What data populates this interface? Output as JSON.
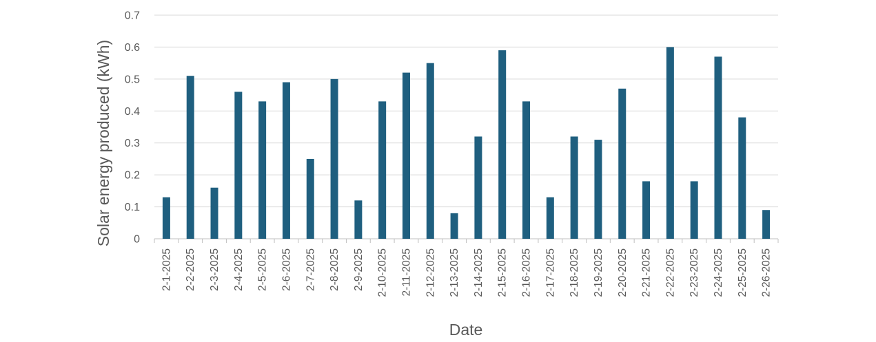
{
  "chart_data": {
    "type": "bar",
    "title": "",
    "xlabel": "Date",
    "ylabel": "Solar energy produced (kWh)",
    "ylim": [
      0,
      0.7
    ],
    "yticks": [
      "0",
      "0.1",
      "0.2",
      "0.3",
      "0.4",
      "0.5",
      "0.6",
      "0.7"
    ],
    "grid": true,
    "legend": "none",
    "bar_color": "#1f5f7f",
    "categories": [
      "2-1-2025",
      "2-2-2025",
      "2-3-2025",
      "2-4-2025",
      "2-5-2025",
      "2-6-2025",
      "2-7-2025",
      "2-8-2025",
      "2-9-2025",
      "2-10-2025",
      "2-11-2025",
      "2-12-2025",
      "2-13-2025",
      "2-14-2025",
      "2-15-2025",
      "2-16-2025",
      "2-17-2025",
      "2-18-2025",
      "2-19-2025",
      "2-20-2025",
      "2-21-2025",
      "2-22-2025",
      "2-23-2025",
      "2-24-2025",
      "2-25-2025",
      "2-26-2025"
    ],
    "values": [
      0.13,
      0.51,
      0.16,
      0.46,
      0.43,
      0.49,
      0.25,
      0.5,
      0.12,
      0.43,
      0.52,
      0.55,
      0.08,
      0.32,
      0.59,
      0.43,
      0.13,
      0.32,
      0.31,
      0.47,
      0.18,
      0.6,
      0.18,
      0.57,
      0.38,
      0.09
    ]
  }
}
